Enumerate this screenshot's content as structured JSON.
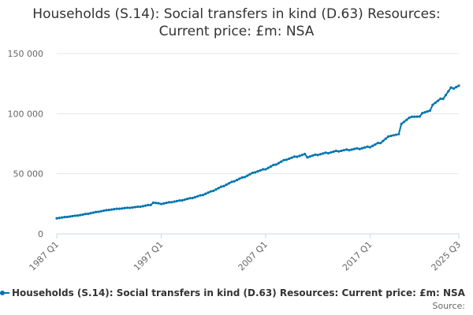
{
  "chart_data": {
    "type": "line",
    "title_lines": [
      "Households (S.14): Social transfers in kind (D.63) Resources:",
      "Current price: £m: NSA"
    ],
    "title": "Households (S.14): Social transfers in kind (D.63) Resources: Current price: £m: NSA",
    "xlabel": "",
    "ylabel": "",
    "x_start": "1987 Q1",
    "x_end": "2025 Q3",
    "x_ticks": [
      "1987 Q1",
      "1997 Q1",
      "2007 Q1",
      "2017 Q1",
      "2025 Q3"
    ],
    "y_ticks": [
      "0",
      "50 000",
      "100 000",
      "150 000"
    ],
    "ylim": [
      0,
      150000
    ],
    "grid": true,
    "legend_position": "bottom",
    "source_label": "Source:",
    "series": [
      {
        "name": "Households (S.14): Social transfers in kind (D.63) Resources: Current price: £m: NSA",
        "color": "#0075b0",
        "anchors": [
          [
            "1987 Q1",
            13000
          ],
          [
            "1988 Q1",
            14200
          ],
          [
            "1989 Q1",
            15300
          ],
          [
            "1990 Q1",
            16800
          ],
          [
            "1991 Q1",
            18500
          ],
          [
            "1992 Q1",
            20000
          ],
          [
            "1993 Q1",
            21000
          ],
          [
            "1994 Q1",
            21800
          ],
          [
            "1995 Q1",
            22700
          ],
          [
            "1996 Q1",
            24200
          ],
          [
            "1996 Q2",
            26000
          ],
          [
            "1997 Q1",
            25000
          ],
          [
            "1998 Q1",
            26500
          ],
          [
            "1999 Q1",
            28000
          ],
          [
            "2000 Q1",
            30000
          ],
          [
            "2001 Q1",
            32500
          ],
          [
            "2002 Q1",
            36000
          ],
          [
            "2003 Q1",
            40000
          ],
          [
            "2004 Q1",
            44000
          ],
          [
            "2005 Q1",
            47500
          ],
          [
            "2006 Q1",
            51500
          ],
          [
            "2007 Q1",
            54000
          ],
          [
            "2008 Q1",
            58000
          ],
          [
            "2009 Q1",
            62000
          ],
          [
            "2010 Q1",
            64500
          ],
          [
            "2010 Q4",
            66000
          ],
          [
            "2011 Q1",
            64000
          ],
          [
            "2012 Q1",
            66000
          ],
          [
            "2013 Q1",
            67500
          ],
          [
            "2014 Q1",
            69000
          ],
          [
            "2015 Q1",
            70000
          ],
          [
            "2016 Q1",
            71000
          ],
          [
            "2017 Q1",
            72500
          ],
          [
            "2018 Q1",
            76000
          ],
          [
            "2019 Q1",
            82000
          ],
          [
            "2019 Q4",
            82500
          ],
          [
            "2020 Q1",
            92000
          ],
          [
            "2020 Q4",
            96000
          ],
          [
            "2021 Q1",
            98000
          ],
          [
            "2021 Q4",
            97000
          ],
          [
            "2022 Q1",
            101000
          ],
          [
            "2022 Q4",
            102000
          ],
          [
            "2023 Q1",
            108000
          ],
          [
            "2024 Q1",
            113000
          ],
          [
            "2024 Q4",
            121000
          ],
          [
            "2025 Q3",
            123000
          ]
        ]
      }
    ]
  }
}
